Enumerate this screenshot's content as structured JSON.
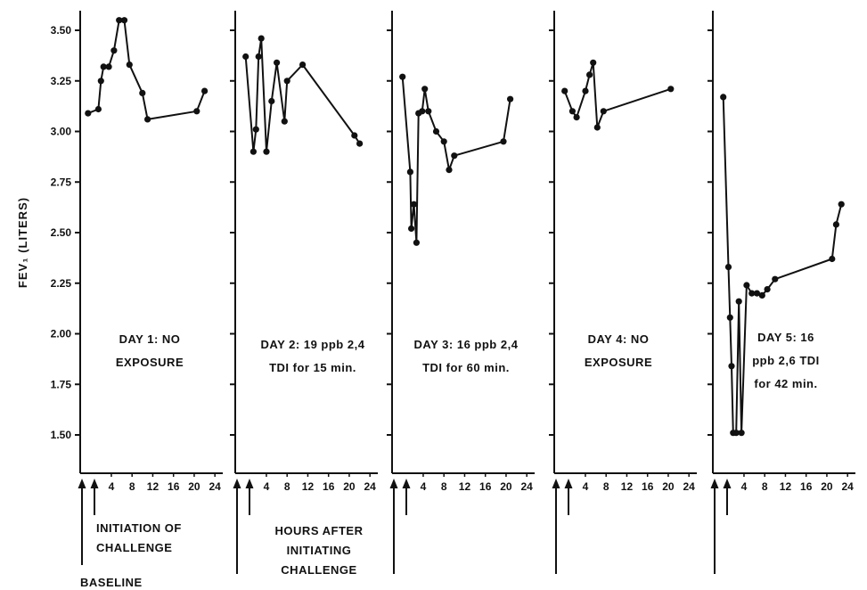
{
  "chart_data": {
    "type": "line",
    "ylabel": "FEV₁ (LITERS)",
    "ylim": [
      1.3,
      3.62
    ],
    "xlim": [
      -1.5,
      25
    ],
    "y_ticks": [
      {
        "value": 1.5,
        "label": "1.50"
      },
      {
        "value": 1.75,
        "label": "1.75"
      },
      {
        "value": 2.0,
        "label": "2.00"
      },
      {
        "value": 2.25,
        "label": "2.25"
      },
      {
        "value": 2.5,
        "label": "2.50"
      },
      {
        "value": 2.75,
        "label": "2.75"
      },
      {
        "value": 3.0,
        "label": "3.00"
      },
      {
        "value": 3.25,
        "label": "3.25"
      },
      {
        "value": 3.5,
        "label": "3.50"
      }
    ],
    "x_ticks": [
      {
        "value": 4,
        "label": "4"
      },
      {
        "value": 8,
        "label": "8"
      },
      {
        "value": 12,
        "label": "12"
      },
      {
        "value": 16,
        "label": "16"
      },
      {
        "value": 20,
        "label": "20"
      },
      {
        "value": 24,
        "label": "24"
      }
    ],
    "panels": [
      {
        "annotation": [
          "DAY 1: NO",
          "EXPOSURE"
        ],
        "x": [
          -0.5,
          1.5,
          2,
          2.5,
          3.5,
          4.5,
          5.5,
          6.5,
          7.5,
          10,
          11,
          20.5,
          22
        ],
        "y": [
          3.09,
          3.11,
          3.25,
          3.32,
          3.32,
          3.4,
          3.55,
          3.55,
          3.33,
          3.19,
          3.06,
          3.1,
          3.2
        ]
      },
      {
        "annotation": [
          "DAY 2: 19 ppb 2,4",
          "TDI for 15 min."
        ],
        "x": [
          0,
          1.5,
          2,
          2.5,
          3,
          4,
          5,
          6,
          7.5,
          8,
          11,
          21,
          22
        ],
        "y": [
          3.37,
          2.9,
          3.01,
          3.37,
          3.46,
          2.9,
          3.15,
          3.34,
          3.05,
          3.25,
          3.33,
          2.98,
          2.94
        ]
      },
      {
        "annotation": [
          "DAY 3: 16 ppb 2,4",
          "TDI for 60 min."
        ],
        "x": [
          0,
          1.5,
          1.7,
          2.2,
          2.7,
          3.1,
          3.8,
          4.3,
          5,
          6.5,
          8,
          9,
          10,
          19.5,
          20.8
        ],
        "y": [
          3.27,
          2.8,
          2.52,
          2.64,
          2.45,
          3.09,
          3.1,
          3.21,
          3.1,
          3.0,
          2.95,
          2.81,
          2.88,
          2.95,
          3.16
        ]
      },
      {
        "annotation": [
          "DAY 4: NO",
          "EXPOSURE"
        ],
        "x": [
          0,
          1.5,
          2.3,
          4,
          4.8,
          5.5,
          6.3,
          7.5,
          20.5
        ],
        "y": [
          3.2,
          3.1,
          3.07,
          3.2,
          3.28,
          3.34,
          3.02,
          3.1,
          3.21
        ]
      },
      {
        "annotation": [
          "DAY 5: 16",
          "ppb 2,6 TDI",
          "for 42 min."
        ],
        "x": [
          0,
          1,
          1.3,
          1.6,
          1.9,
          2.5,
          3,
          3.5,
          4.5,
          5.5,
          6.5,
          7.5,
          8.5,
          10,
          21,
          21.8,
          22.8
        ],
        "y": [
          3.17,
          2.33,
          2.08,
          1.84,
          1.51,
          1.51,
          2.16,
          1.51,
          2.24,
          2.2,
          2.2,
          2.19,
          2.22,
          2.27,
          2.37,
          2.54,
          2.64
        ]
      }
    ],
    "notes": {
      "initiation": [
        "INITIATION OF",
        "CHALLENGE"
      ],
      "hours_after": [
        "HOURS AFTER",
        "INITIATING",
        "CHALLENGE"
      ],
      "baseline": "BASELINE"
    }
  }
}
